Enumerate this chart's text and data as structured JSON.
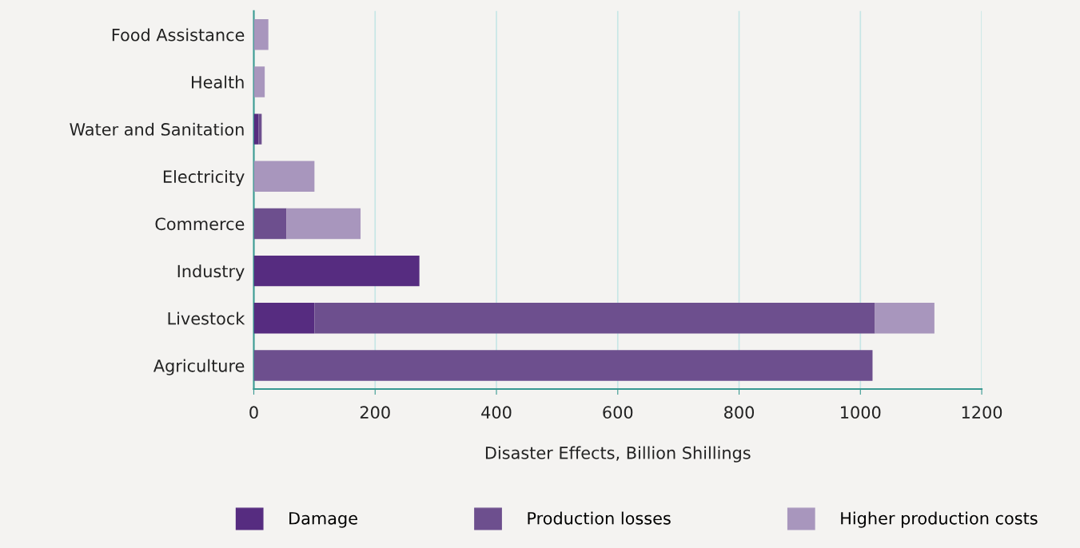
{
  "chart_data": {
    "type": "bar",
    "orientation": "horizontal",
    "stacked": true,
    "xlabel": "Disaster Effects, Billion Shillings",
    "categories": [
      "Food Assistance",
      "Health",
      "Water and Sanitation",
      "Electricity",
      "Commerce",
      "Industry",
      "Livestock",
      "Agriculture"
    ],
    "series": [
      {
        "name": "Damage",
        "color": "#562c80",
        "values": [
          0,
          0,
          8,
          0,
          0,
          273,
          100,
          0
        ]
      },
      {
        "name": "Production losses",
        "color": "#6d4f8e",
        "values": [
          0,
          0,
          5,
          0,
          54,
          0,
          924,
          1020
        ]
      },
      {
        "name": "Higher production costs",
        "color": "#a896bd",
        "values": [
          24,
          18,
          0,
          100,
          122,
          0,
          98,
          0
        ]
      }
    ],
    "xlim": [
      0,
      1200
    ],
    "xticks": [
      0,
      200,
      400,
      600,
      800,
      1000,
      1200
    ],
    "grid": "x",
    "legend": "bottom"
  }
}
